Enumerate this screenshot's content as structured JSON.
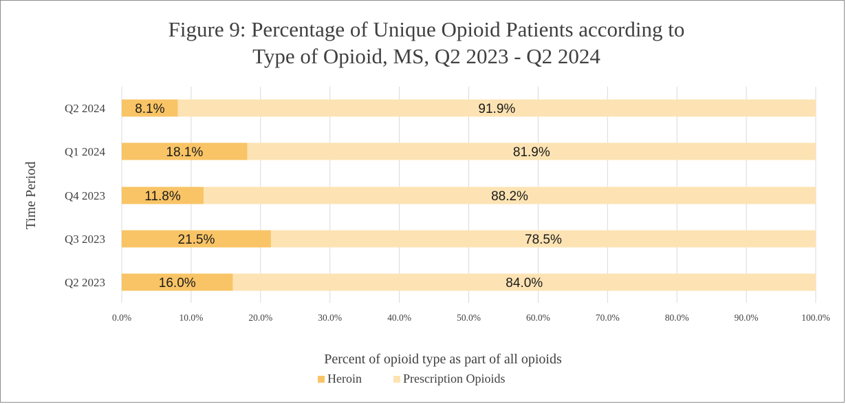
{
  "chart_data": {
    "type": "bar",
    "orientation": "horizontal",
    "stacked": true,
    "title_lines": [
      "Figure 9: Percentage of Unique Opioid Patients according to",
      "Type of Opioid, MS, Q2 2023 - Q2 2024"
    ],
    "xlabel": "Percent of opioid type as part of all opioids",
    "ylabel": "Time Period",
    "categories": [
      "Q2 2024",
      "Q1 2024",
      "Q4 2023",
      "Q3 2023",
      "Q2 2023"
    ],
    "series": [
      {
        "name": "Heroin",
        "color": "#f9c466",
        "values": [
          8.1,
          18.1,
          11.8,
          21.5,
          16.0
        ],
        "labels": [
          "8.1%",
          "18.1%",
          "11.8%",
          "21.5%",
          "16.0%"
        ]
      },
      {
        "name": "Prescription Opioids",
        "color": "#fde3b3",
        "values": [
          91.9,
          81.9,
          88.2,
          78.5,
          84.0
        ],
        "labels": [
          "91.9%",
          "81.9%",
          "88.2%",
          "78.5%",
          "84.0%"
        ]
      }
    ],
    "xlim": [
      0,
      100
    ],
    "xticks": [
      0,
      10,
      20,
      30,
      40,
      50,
      60,
      70,
      80,
      90,
      100
    ],
    "xtick_labels": [
      "0.0%",
      "10.0%",
      "20.0%",
      "30.0%",
      "40.0%",
      "50.0%",
      "60.0%",
      "70.0%",
      "80.0%",
      "90.0%",
      "100.0%"
    ],
    "grid": "vertical",
    "legend_position": "bottom"
  }
}
